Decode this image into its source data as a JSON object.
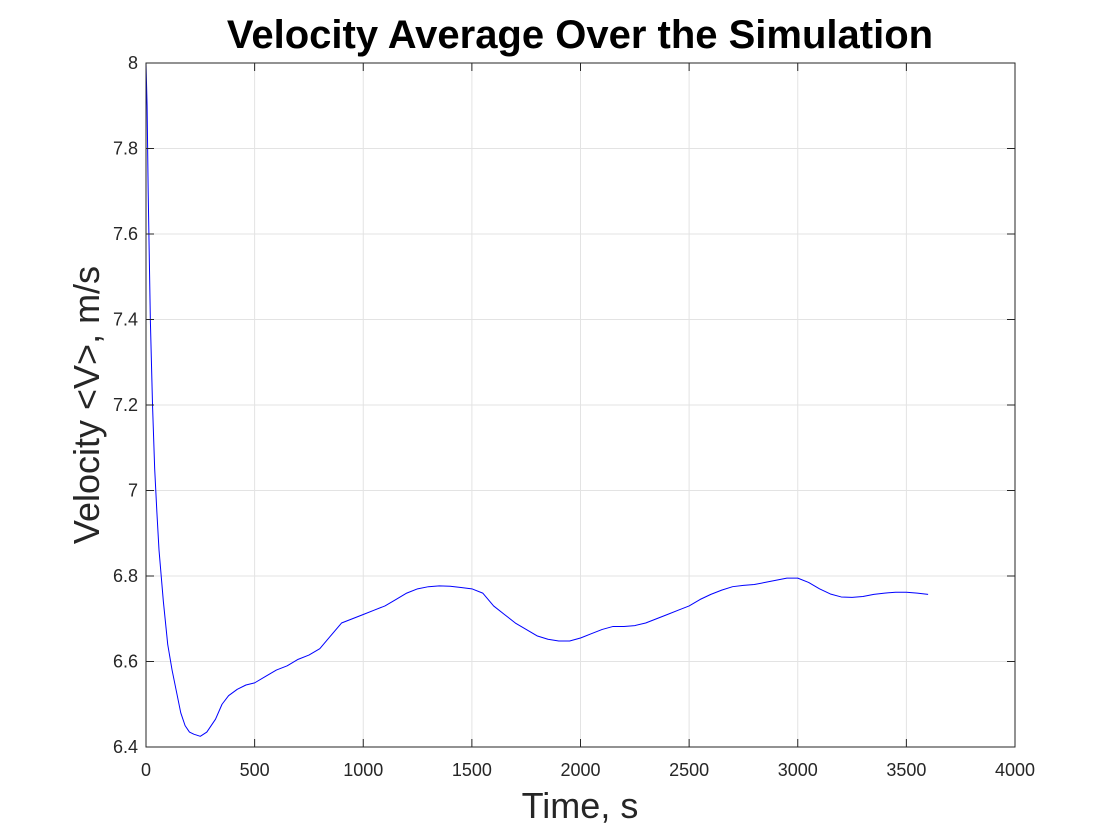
{
  "chart_data": {
    "type": "line",
    "title": "Velocity Average Over the Simulation",
    "xlabel": "Time, s",
    "ylabel": "Velocity <V>, m/s",
    "xlim": [
      0,
      4000
    ],
    "ylim": [
      6.4,
      8
    ],
    "xticks": [
      0,
      500,
      1000,
      1500,
      2000,
      2500,
      3000,
      3500,
      4000
    ],
    "xtick_labels": [
      "0",
      "500",
      "1000",
      "1500",
      "2000",
      "2500",
      "3000",
      "3500",
      "4000"
    ],
    "yticks": [
      6.4,
      6.6,
      6.8,
      7,
      7.2,
      7.4,
      7.6,
      7.8,
      8
    ],
    "ytick_labels": [
      "6.4",
      "6.6",
      "6.8",
      "7",
      "7.2",
      "7.4",
      "7.6",
      "7.8",
      "8"
    ],
    "grid": true,
    "box": true,
    "series": [
      {
        "color": "#0000ff",
        "x": [
          0,
          5,
          10,
          20,
          30,
          40,
          50,
          60,
          80,
          100,
          120,
          140,
          160,
          180,
          200,
          220,
          250,
          280,
          320,
          350,
          380,
          420,
          460,
          500,
          550,
          600,
          650,
          700,
          750,
          800,
          850,
          900,
          950,
          1000,
          1050,
          1100,
          1150,
          1200,
          1250,
          1300,
          1350,
          1400,
          1450,
          1500,
          1550,
          1600,
          1650,
          1700,
          1750,
          1800,
          1850,
          1900,
          1950,
          2000,
          2050,
          2100,
          2150,
          2200,
          2250,
          2300,
          2350,
          2400,
          2450,
          2500,
          2550,
          2600,
          2650,
          2700,
          2750,
          2800,
          2850,
          2900,
          2950,
          3000,
          3050,
          3100,
          3150,
          3200,
          3250,
          3300,
          3350,
          3400,
          3450,
          3500,
          3550,
          3600
        ],
        "y": [
          8.0,
          7.9,
          7.7,
          7.4,
          7.2,
          7.05,
          6.95,
          6.86,
          6.74,
          6.64,
          6.58,
          6.53,
          6.48,
          6.45,
          6.435,
          6.43,
          6.425,
          6.435,
          6.465,
          6.5,
          6.52,
          6.535,
          6.545,
          6.55,
          6.565,
          6.58,
          6.59,
          6.605,
          6.615,
          6.63,
          6.66,
          6.69,
          6.7,
          6.71,
          6.72,
          6.73,
          6.745,
          6.76,
          6.77,
          6.775,
          6.777,
          6.776,
          6.773,
          6.77,
          6.76,
          6.73,
          6.71,
          6.69,
          6.675,
          6.66,
          6.652,
          6.648,
          6.648,
          6.655,
          6.665,
          6.675,
          6.682,
          6.682,
          6.684,
          6.69,
          6.7,
          6.71,
          6.72,
          6.73,
          6.745,
          6.757,
          6.767,
          6.775,
          6.778,
          6.78,
          6.785,
          6.79,
          6.795,
          6.795,
          6.785,
          6.77,
          6.758,
          6.751,
          6.75,
          6.752,
          6.757,
          6.76,
          6.762,
          6.762,
          6.76,
          6.757
        ]
      }
    ]
  }
}
